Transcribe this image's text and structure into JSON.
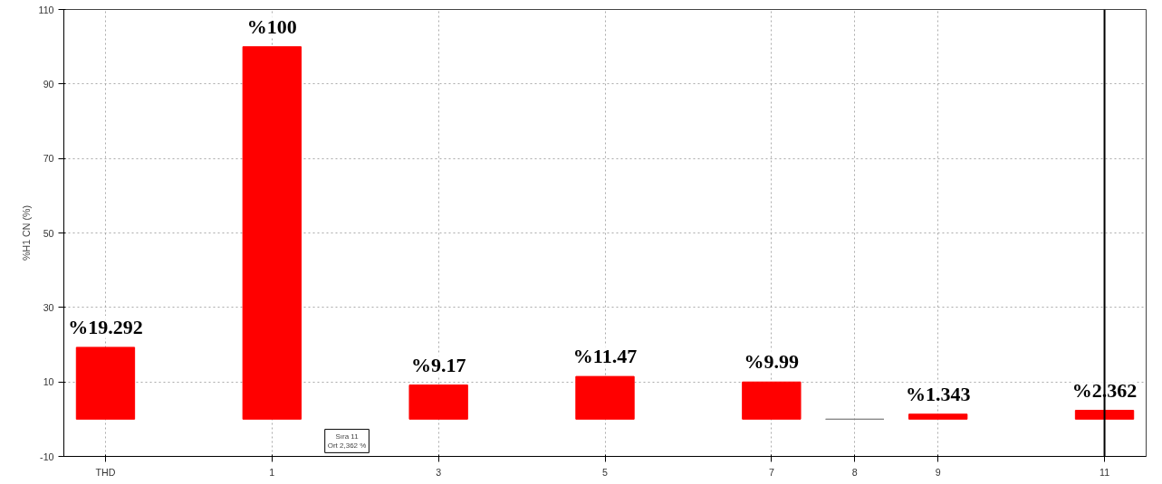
{
  "chart_data": {
    "type": "bar",
    "ylabel": "%H1 CN (%)",
    "x": [
      -1,
      1,
      3,
      5,
      7,
      8,
      9,
      11
    ],
    "values": [
      19.292,
      100,
      9.17,
      11.47,
      9.99,
      0,
      1.343,
      2.362
    ],
    "colors": [
      "#ff0000",
      "#ff0000",
      "#ff0000",
      "#ff0000",
      "#ff0000",
      "#808080",
      "#ff0000",
      "#ff0000"
    ],
    "value_labels": [
      "%19.292",
      "%100",
      "%9.17",
      "%11.47",
      "%9.99",
      null,
      "%1.343",
      "%2.362"
    ],
    "xlim": [
      -1.5,
      11.5
    ],
    "xticks": [
      {
        "value": -1,
        "label": "THD"
      },
      1,
      3,
      5,
      7,
      8,
      9,
      11
    ],
    "ylim": [
      -10,
      110
    ],
    "yticks": [
      -10,
      10,
      30,
      50,
      70,
      90,
      110
    ],
    "grid": true,
    "ref_lines": [
      {
        "axis": "x",
        "value": 11,
        "color": "#000000"
      }
    ],
    "annotations": [
      "Sıra 11\nOrt 2,362 %"
    ]
  }
}
